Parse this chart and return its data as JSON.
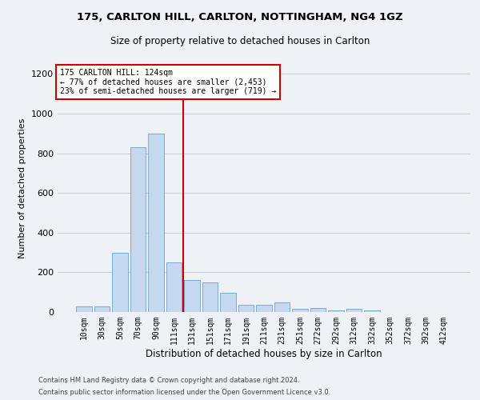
{
  "title1": "175, CARLTON HILL, CARLTON, NOTTINGHAM, NG4 1GZ",
  "title2": "Size of property relative to detached houses in Carlton",
  "xlabel": "Distribution of detached houses by size in Carlton",
  "ylabel": "Number of detached properties",
  "bar_labels": [
    "10sqm",
    "30sqm",
    "50sqm",
    "70sqm",
    "90sqm",
    "111sqm",
    "131sqm",
    "151sqm",
    "171sqm",
    "191sqm",
    "211sqm",
    "231sqm",
    "251sqm",
    "272sqm",
    "292sqm",
    "312sqm",
    "332sqm",
    "352sqm",
    "372sqm",
    "392sqm",
    "412sqm"
  ],
  "bar_values": [
    28,
    28,
    300,
    830,
    900,
    250,
    160,
    148,
    98,
    38,
    38,
    50,
    18,
    20,
    8,
    18,
    8,
    0,
    0,
    0,
    0
  ],
  "bar_color": "#c5d8f0",
  "bar_edge_color": "#7aaad0",
  "grid_color": "#cccccc",
  "annotation_text_line1": "175 CARLTON HILL: 124sqm",
  "annotation_text_line2": "← 77% of detached houses are smaller (2,453)",
  "annotation_text_line3": "23% of semi-detached houses are larger (719) →",
  "annotation_box_color": "#ffffff",
  "annotation_box_edge_color": "#cc0000",
  "vline_color": "#cc0000",
  "vline_x": 5.5,
  "ylim": [
    0,
    1250
  ],
  "yticks": [
    0,
    200,
    400,
    600,
    800,
    1000,
    1200
  ],
  "footer1": "Contains HM Land Registry data © Crown copyright and database right 2024.",
  "footer2": "Contains public sector information licensed under the Open Government Licence v3.0.",
  "bg_color": "#eef2f7",
  "title1_fontsize": 9.5,
  "title2_fontsize": 8.5,
  "ylabel_fontsize": 8,
  "xlabel_fontsize": 8.5,
  "tick_fontsize": 7,
  "footer_fontsize": 6
}
